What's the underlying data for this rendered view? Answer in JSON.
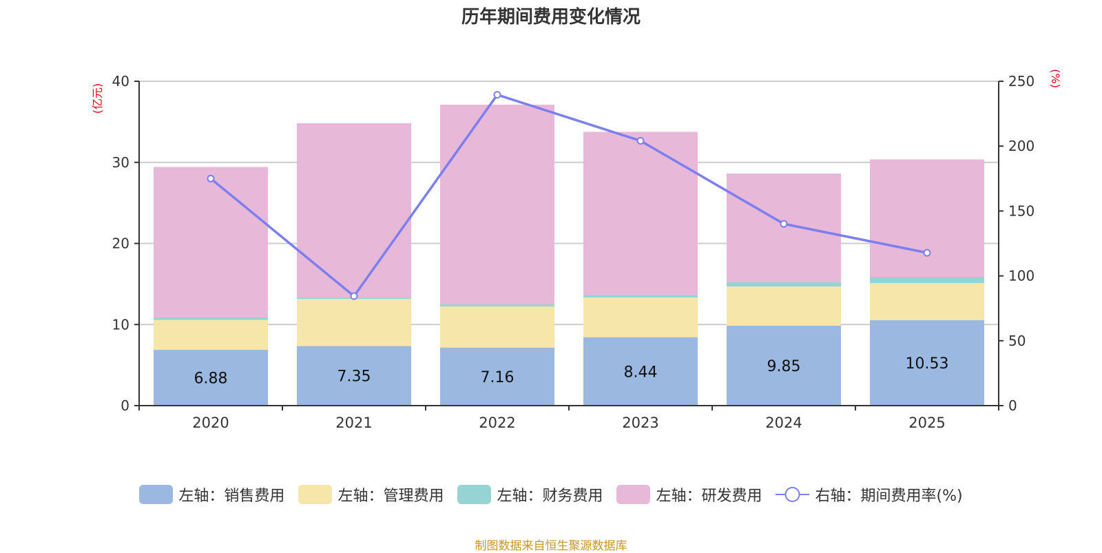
{
  "chart_data": {
    "type": "bar",
    "title": "历年期间费用变化情况",
    "categories": [
      "2020",
      "2021",
      "2022",
      "2023",
      "2024",
      "2025"
    ],
    "left_axis": {
      "label": "(亿元)",
      "min": 0,
      "max": 40,
      "ticks": [
        0,
        10,
        20,
        30,
        40
      ]
    },
    "right_axis": {
      "label": "(%)",
      "min": 0,
      "max": 250,
      "ticks": [
        0,
        50,
        100,
        150,
        200,
        250
      ]
    },
    "grid": true,
    "stacked": true,
    "series": [
      {
        "name": "左轴：销售费用",
        "axis": "left",
        "type": "bar",
        "color": "#9bb8e1",
        "values": [
          6.88,
          7.35,
          7.16,
          8.44,
          9.85,
          10.53
        ],
        "show_labels": true
      },
      {
        "name": "左轴：管理费用",
        "axis": "left",
        "type": "bar",
        "color": "#f7e6a9",
        "values": [
          3.69,
          5.81,
          5.07,
          4.89,
          4.84,
          4.59
        ]
      },
      {
        "name": "左轴：财务费用",
        "axis": "left",
        "type": "bar",
        "color": "#96d4d4",
        "values": [
          0.3,
          0.17,
          0.25,
          0.3,
          0.51,
          0.72
        ]
      },
      {
        "name": "左轴：研发费用",
        "axis": "left",
        "type": "bar",
        "color": "#e7b8d8",
        "values": [
          18.56,
          21.49,
          24.63,
          20.13,
          13.42,
          14.52
        ]
      },
      {
        "name": "右轴：期间费用率(%)",
        "axis": "right",
        "type": "line",
        "color": "#7b7ff0",
        "values": [
          175.0,
          84.4,
          239.6,
          204.1,
          140.1,
          117.8
        ]
      }
    ],
    "data_labels": [
      "6.88",
      "7.35",
      "7.16",
      "8.44",
      "9.85",
      "10.53"
    ],
    "legend_position": "bottom"
  },
  "footer": {
    "source": "制图数据来自恒生聚源数据库"
  }
}
